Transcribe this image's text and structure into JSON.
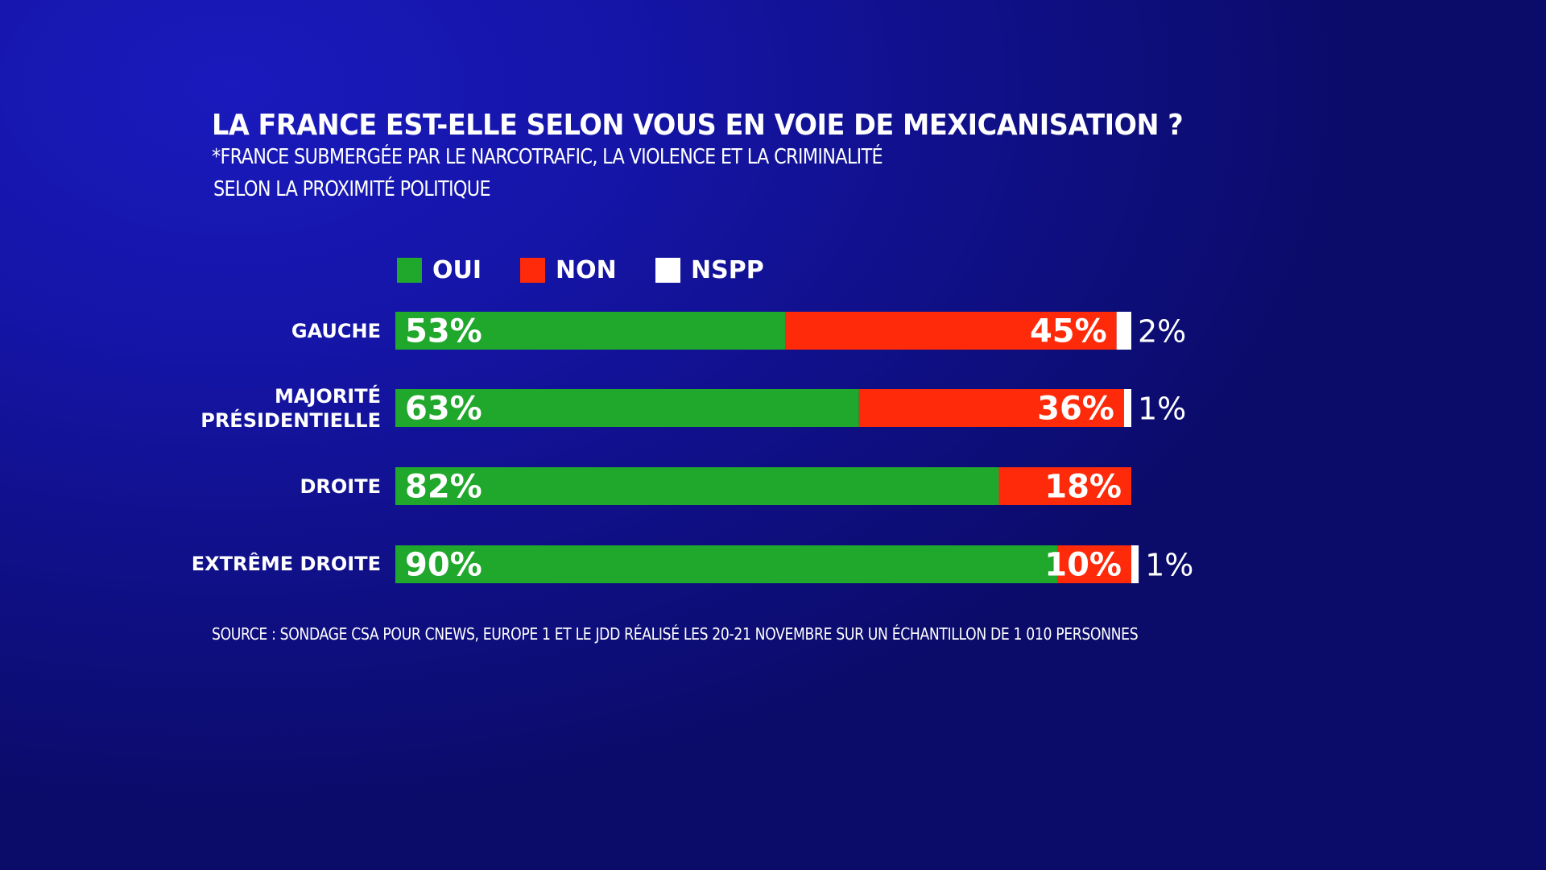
{
  "header": {
    "title": "LA FRANCE EST-ELLE SELON VOUS EN VOIE DE MEXICANISATION ?",
    "subtitle": "*FRANCE SUBMERGÉE PAR LE NARCOTRAFIC, LA VIOLENCE ET LA CRIMINALITÉ",
    "breakdown": "SELON LA PROXIMITÉ POLITIQUE"
  },
  "legend": {
    "items": [
      {
        "label": "OUI",
        "color": "#20a82c"
      },
      {
        "label": "NON",
        "color": "#ff2a0a"
      },
      {
        "label": "NSPP",
        "color": "#ffffff"
      }
    ]
  },
  "rows": [
    {
      "label_lines": [
        "GAUCHE"
      ]
    },
    {
      "label_lines": [
        "MAJORITÉ",
        "PRÉSIDENTIELLE"
      ]
    },
    {
      "label_lines": [
        "DROITE"
      ]
    },
    {
      "label_lines": [
        "EXTRÊME DROITE"
      ]
    }
  ],
  "footer": {
    "source": "SOURCE : SONDAGE CSA POUR CNEWS, EUROPE 1 ET LE JDD RÉALISÉ LES 20-21 NOVEMBRE SUR UN ÉCHANTILLON DE 1 010 PERSONNES"
  },
  "chart_data": {
    "type": "bar",
    "orientation": "horizontal",
    "stacked": true,
    "title": "LA FRANCE EST-ELLE SELON VOUS EN VOIE DE MEXICANISATION ?",
    "subtitle": "*FRANCE SUBMERGÉE PAR LE NARCOTRAFIC, LA VIOLENCE ET LA CRIMINALITÉ — SELON LA PROXIMITÉ POLITIQUE",
    "categories": [
      "GAUCHE",
      "MAJORITÉ PRÉSIDENTIELLE",
      "DROITE",
      "EXTRÊME DROITE"
    ],
    "series": [
      {
        "name": "OUI",
        "color": "#20a82c",
        "values": [
          53,
          63,
          82,
          90
        ],
        "labels": [
          "53%",
          "63%",
          "82%",
          "90%"
        ]
      },
      {
        "name": "NON",
        "color": "#ff2a0a",
        "values": [
          45,
          36,
          18,
          10
        ],
        "labels": [
          "45%",
          "36%",
          "18%",
          "10%"
        ]
      },
      {
        "name": "NSPP",
        "color": "#ffffff",
        "values": [
          2,
          1,
          0,
          1
        ],
        "labels": [
          "2%",
          "1%",
          "",
          "1%"
        ]
      }
    ],
    "xlabel": "",
    "ylabel": "",
    "xlim": [
      0,
      100
    ],
    "unit": "%",
    "grid": false,
    "legend_position": "top"
  }
}
